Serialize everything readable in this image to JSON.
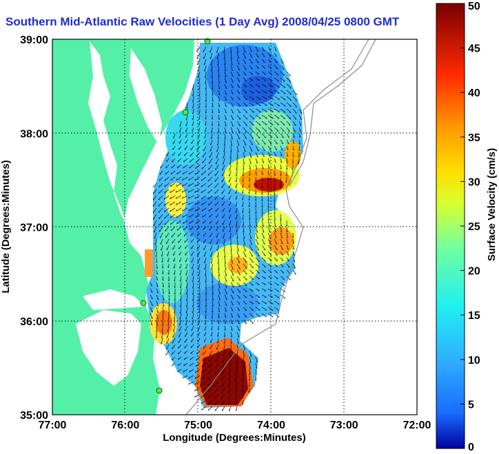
{
  "chart_data": {
    "type": "heatmap",
    "title": "Southern Mid-Atlantic Raw Velocities (1 Day Avg) 2008/04/25 0800 GMT",
    "xlabel": "Longitude (Degrees:Minutes)",
    "ylabel": "Latitude (Degrees:Minutes)",
    "colorbar_label": "Surface Velocity (cm/s)",
    "x_ticks": [
      "77:00",
      "76:00",
      "75:00",
      "74:00",
      "73:00",
      "72:00"
    ],
    "x_tick_values": [
      -77,
      -76,
      -75,
      -74,
      -73,
      -72
    ],
    "y_ticks": [
      "39:00",
      "38:00",
      "37:00",
      "36:00",
      "35:00"
    ],
    "y_tick_values": [
      39,
      38,
      37,
      36,
      35
    ],
    "xlim": [
      -77,
      -72
    ],
    "ylim": [
      35,
      39
    ],
    "colorbar_ticks": [
      0,
      5,
      10,
      15,
      20,
      25,
      30,
      35,
      40,
      45,
      50
    ],
    "colorbar_range": [
      0,
      50
    ],
    "grid": true,
    "colors": {
      "land": "#55f0a8",
      "title": "#1f2bd6",
      "colormap": "jet"
    }
  }
}
